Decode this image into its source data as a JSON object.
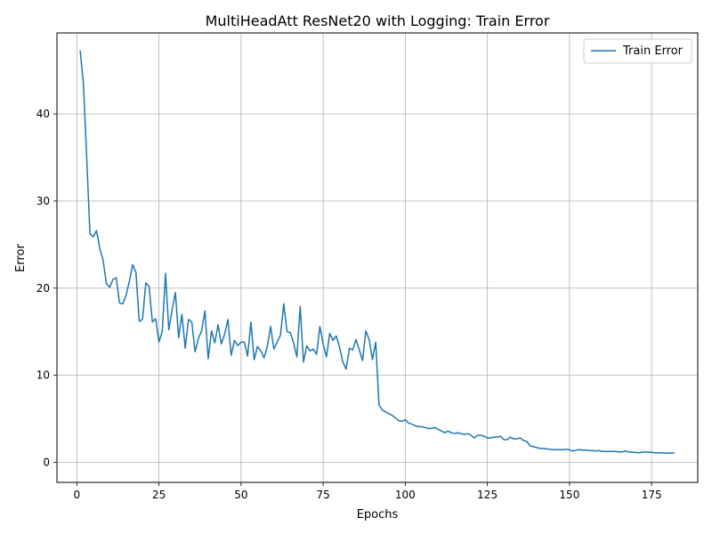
{
  "chart_data": {
    "type": "line",
    "title": "MultiHeadAtt ResNet20 with Logging: Train Error",
    "xlabel": "Epochs",
    "ylabel": "Error",
    "xlim": [
      -6.05,
      189.05
    ],
    "ylim": [
      -2.3,
      49.3
    ],
    "xticks": [
      0,
      25,
      50,
      75,
      100,
      125,
      150,
      175
    ],
    "yticks": [
      0,
      10,
      20,
      30,
      40
    ],
    "grid": true,
    "legend_position": "top-right",
    "series": [
      {
        "name": "Train Error",
        "color": "#1f77b4",
        "x": [
          1,
          2,
          3,
          4,
          5,
          6,
          7,
          8,
          9,
          10,
          11,
          12,
          13,
          14,
          15,
          16,
          17,
          18,
          19,
          20,
          21,
          22,
          23,
          24,
          25,
          26,
          27,
          28,
          29,
          30,
          31,
          32,
          33,
          34,
          35,
          36,
          37,
          38,
          39,
          40,
          41,
          42,
          43,
          44,
          45,
          46,
          47,
          48,
          49,
          50,
          51,
          52,
          53,
          54,
          55,
          56,
          57,
          58,
          59,
          60,
          61,
          62,
          63,
          64,
          65,
          66,
          67,
          68,
          69,
          70,
          71,
          72,
          73,
          74,
          75,
          76,
          77,
          78,
          79,
          80,
          81,
          82,
          83,
          84,
          85,
          86,
          87,
          88,
          89,
          90,
          91,
          92,
          93,
          94,
          95,
          96,
          97,
          98,
          99,
          100,
          101,
          102,
          103,
          104,
          105,
          106,
          107,
          108,
          109,
          110,
          111,
          112,
          113,
          114,
          115,
          116,
          117,
          118,
          119,
          120,
          121,
          122,
          123,
          124,
          125,
          126,
          127,
          128,
          129,
          130,
          131,
          132,
          133,
          134,
          135,
          136,
          137,
          138,
          139,
          140,
          141,
          142,
          143,
          144,
          145,
          146,
          147,
          148,
          149,
          150,
          151,
          152,
          153,
          154,
          155,
          156,
          157,
          158,
          159,
          160,
          161,
          162,
          163,
          164,
          165,
          166,
          167,
          168,
          169,
          170,
          171,
          172,
          173,
          174,
          175,
          176,
          177,
          178,
          179,
          180,
          181,
          182
        ],
        "values": [
          47.3,
          43.5,
          35.0,
          26.2,
          25.9,
          26.6,
          24.5,
          23.2,
          20.5,
          20.1,
          21.0,
          21.2,
          18.3,
          18.2,
          19.2,
          20.8,
          22.7,
          21.8,
          16.2,
          16.4,
          20.6,
          20.2,
          16.1,
          16.5,
          13.8,
          15.0,
          21.7,
          15.2,
          17.5,
          19.5,
          14.3,
          17.0,
          13.1,
          16.4,
          16.1,
          12.7,
          14.2,
          15.1,
          17.4,
          11.9,
          15.1,
          13.7,
          15.8,
          13.6,
          14.7,
          16.4,
          12.3,
          14.0,
          13.4,
          13.8,
          13.8,
          12.2,
          16.1,
          11.8,
          13.3,
          12.8,
          12.0,
          13.3,
          15.6,
          13.0,
          13.8,
          14.6,
          18.2,
          15.0,
          14.9,
          13.7,
          12.1,
          17.9,
          11.5,
          13.4,
          12.8,
          13.0,
          12.4,
          15.6,
          13.6,
          12.1,
          14.8,
          14.0,
          14.5,
          13.2,
          11.5,
          10.7,
          13.1,
          12.9,
          14.1,
          12.9,
          11.7,
          15.1,
          14.1,
          11.8,
          13.8,
          6.6,
          6.0,
          5.8,
          5.6,
          5.4,
          5.1,
          4.8,
          4.7,
          4.9,
          4.5,
          4.4,
          4.2,
          4.1,
          4.1,
          4.0,
          3.9,
          3.9,
          4.0,
          3.8,
          3.6,
          3.4,
          3.6,
          3.4,
          3.3,
          3.4,
          3.3,
          3.2,
          3.3,
          3.1,
          2.8,
          3.1,
          3.1,
          3.0,
          2.8,
          2.8,
          2.9,
          2.9,
          3.0,
          2.6,
          2.6,
          2.9,
          2.7,
          2.7,
          2.8,
          2.5,
          2.4,
          1.9,
          1.8,
          1.7,
          1.6,
          1.6,
          1.55,
          1.5,
          1.45,
          1.45,
          1.45,
          1.45,
          1.5,
          1.45,
          1.3,
          1.4,
          1.45,
          1.4,
          1.4,
          1.35,
          1.35,
          1.3,
          1.35,
          1.25,
          1.25,
          1.25,
          1.25,
          1.25,
          1.2,
          1.2,
          1.3,
          1.2,
          1.15,
          1.15,
          1.1,
          1.15,
          1.2,
          1.15,
          1.15,
          1.1,
          1.1,
          1.1,
          1.05,
          1.05,
          1.1,
          1.05
        ]
      }
    ]
  }
}
